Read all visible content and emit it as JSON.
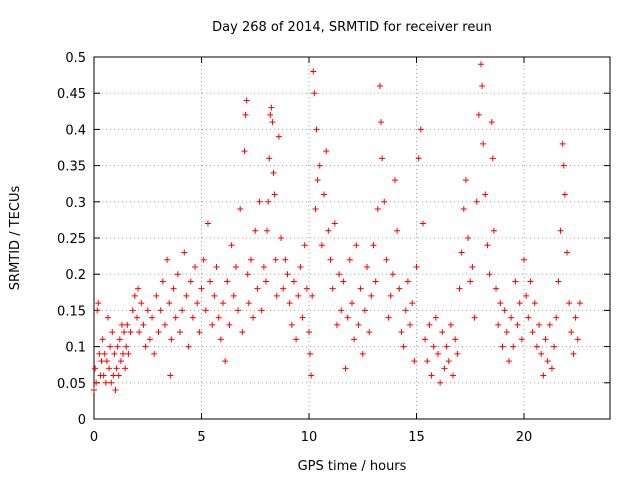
{
  "chart_data": {
    "type": "scatter",
    "title": "Day 268 of 2014, SRMTID for receiver reun",
    "xlabel": "GPS time / hours",
    "ylabel": "SRMTID / TECUs",
    "xlim": [
      0,
      24
    ],
    "ylim": [
      0,
      0.5
    ],
    "xticks": [
      0,
      5,
      10,
      15,
      20
    ],
    "xtick_labels": [
      "0",
      "5",
      "10",
      "15",
      "20"
    ],
    "yticks": [
      0,
      0.05,
      0.1,
      0.15,
      0.2,
      0.25,
      0.3,
      0.35,
      0.4,
      0.45,
      0.5
    ],
    "ytick_labels": [
      "0",
      "0.05",
      "0.1",
      "0.15",
      "0.2",
      "0.25",
      "0.3",
      "0.35",
      "0.4",
      "0.45",
      "0.5"
    ],
    "grid": true,
    "marker": "+",
    "color": "#ff0000",
    "series": [
      {
        "name": "reun",
        "points": [
          [
            0.0,
            0.04
          ],
          [
            0.05,
            0.07
          ],
          [
            0.1,
            0.05
          ],
          [
            0.15,
            0.15
          ],
          [
            0.2,
            0.16
          ],
          [
            0.25,
            0.09
          ],
          [
            0.3,
            0.06
          ],
          [
            0.35,
            0.08
          ],
          [
            0.4,
            0.11
          ],
          [
            0.45,
            0.06
          ],
          [
            0.5,
            0.09
          ],
          [
            0.55,
            0.05
          ],
          [
            0.6,
            0.08
          ],
          [
            0.65,
            0.14
          ],
          [
            0.7,
            0.07
          ],
          [
            0.75,
            0.1
          ],
          [
            0.8,
            0.05
          ],
          [
            0.85,
            0.12
          ],
          [
            0.9,
            0.06
          ],
          [
            0.95,
            0.09
          ],
          [
            1.0,
            0.04
          ],
          [
            1.05,
            0.07
          ],
          [
            1.1,
            0.1
          ],
          [
            1.15,
            0.06
          ],
          [
            1.2,
            0.11
          ],
          [
            1.25,
            0.08
          ],
          [
            1.3,
            0.13
          ],
          [
            1.35,
            0.09
          ],
          [
            1.4,
            0.12
          ],
          [
            1.45,
            0.07
          ],
          [
            1.5,
            0.1
          ],
          [
            1.55,
            0.13
          ],
          [
            1.6,
            0.09
          ],
          [
            1.7,
            0.12
          ],
          [
            1.8,
            0.15
          ],
          [
            1.9,
            0.17
          ],
          [
            2.0,
            0.14
          ],
          [
            2.05,
            0.18
          ],
          [
            2.1,
            0.12
          ],
          [
            2.2,
            0.16
          ],
          [
            2.3,
            0.13
          ],
          [
            2.4,
            0.1
          ],
          [
            2.5,
            0.15
          ],
          [
            2.6,
            0.11
          ],
          [
            2.7,
            0.14
          ],
          [
            2.8,
            0.09
          ],
          [
            2.9,
            0.17
          ],
          [
            3.0,
            0.12
          ],
          [
            3.1,
            0.15
          ],
          [
            3.2,
            0.19
          ],
          [
            3.3,
            0.13
          ],
          [
            3.4,
            0.22
          ],
          [
            3.5,
            0.16
          ],
          [
            3.55,
            0.06
          ],
          [
            3.6,
            0.11
          ],
          [
            3.7,
            0.18
          ],
          [
            3.8,
            0.14
          ],
          [
            3.9,
            0.2
          ],
          [
            4.0,
            0.12
          ],
          [
            4.1,
            0.15
          ],
          [
            4.2,
            0.23
          ],
          [
            4.3,
            0.17
          ],
          [
            4.4,
            0.1
          ],
          [
            4.5,
            0.19
          ],
          [
            4.6,
            0.14
          ],
          [
            4.7,
            0.21
          ],
          [
            4.8,
            0.16
          ],
          [
            4.9,
            0.12
          ],
          [
            5.0,
            0.18
          ],
          [
            5.1,
            0.22
          ],
          [
            5.2,
            0.15
          ],
          [
            5.3,
            0.27
          ],
          [
            5.4,
            0.19
          ],
          [
            5.5,
            0.13
          ],
          [
            5.6,
            0.17
          ],
          [
            5.7,
            0.21
          ],
          [
            5.8,
            0.14
          ],
          [
            5.9,
            0.11
          ],
          [
            6.0,
            0.16
          ],
          [
            6.1,
            0.08
          ],
          [
            6.2,
            0.19
          ],
          [
            6.3,
            0.13
          ],
          [
            6.4,
            0.24
          ],
          [
            6.5,
            0.17
          ],
          [
            6.6,
            0.21
          ],
          [
            6.7,
            0.15
          ],
          [
            6.8,
            0.29
          ],
          [
            6.9,
            0.12
          ],
          [
            7.0,
            0.37
          ],
          [
            7.05,
            0.42
          ],
          [
            7.1,
            0.44
          ],
          [
            7.15,
            0.2
          ],
          [
            7.2,
            0.16
          ],
          [
            7.3,
            0.22
          ],
          [
            7.4,
            0.14
          ],
          [
            7.5,
            0.26
          ],
          [
            7.6,
            0.18
          ],
          [
            7.7,
            0.3
          ],
          [
            7.8,
            0.15
          ],
          [
            7.9,
            0.21
          ],
          [
            8.0,
            0.19
          ],
          [
            8.05,
            0.26
          ],
          [
            8.1,
            0.3
          ],
          [
            8.15,
            0.36
          ],
          [
            8.2,
            0.42
          ],
          [
            8.25,
            0.43
          ],
          [
            8.3,
            0.41
          ],
          [
            8.35,
            0.34
          ],
          [
            8.4,
            0.31
          ],
          [
            8.45,
            0.22
          ],
          [
            8.5,
            0.17
          ],
          [
            8.6,
            0.39
          ],
          [
            8.7,
            0.25
          ],
          [
            8.8,
            0.18
          ],
          [
            8.9,
            0.22
          ],
          [
            9.0,
            0.2
          ],
          [
            9.1,
            0.16
          ],
          [
            9.2,
            0.13
          ],
          [
            9.3,
            0.19
          ],
          [
            9.4,
            0.11
          ],
          [
            9.5,
            0.17
          ],
          [
            9.6,
            0.21
          ],
          [
            9.7,
            0.14
          ],
          [
            9.8,
            0.24
          ],
          [
            9.9,
            0.18
          ],
          [
            10.0,
            0.12
          ],
          [
            10.05,
            0.09
          ],
          [
            10.1,
            0.06
          ],
          [
            10.15,
            0.17
          ],
          [
            10.2,
            0.48
          ],
          [
            10.25,
            0.45
          ],
          [
            10.3,
            0.29
          ],
          [
            10.35,
            0.4
          ],
          [
            10.4,
            0.33
          ],
          [
            10.5,
            0.35
          ],
          [
            10.6,
            0.24
          ],
          [
            10.7,
            0.31
          ],
          [
            10.8,
            0.37
          ],
          [
            10.9,
            0.26
          ],
          [
            11.0,
            0.22
          ],
          [
            11.1,
            0.18
          ],
          [
            11.2,
            0.27
          ],
          [
            11.3,
            0.13
          ],
          [
            11.4,
            0.2
          ],
          [
            11.5,
            0.15
          ],
          [
            11.6,
            0.19
          ],
          [
            11.7,
            0.07
          ],
          [
            11.8,
            0.14
          ],
          [
            11.9,
            0.22
          ],
          [
            12.0,
            0.16
          ],
          [
            12.1,
            0.11
          ],
          [
            12.2,
            0.24
          ],
          [
            12.3,
            0.13
          ],
          [
            12.4,
            0.18
          ],
          [
            12.5,
            0.09
          ],
          [
            12.6,
            0.15
          ],
          [
            12.7,
            0.21
          ],
          [
            12.8,
            0.12
          ],
          [
            12.9,
            0.17
          ],
          [
            13.0,
            0.24
          ],
          [
            13.1,
            0.19
          ],
          [
            13.2,
            0.29
          ],
          [
            13.3,
            0.46
          ],
          [
            13.35,
            0.41
          ],
          [
            13.4,
            0.36
          ],
          [
            13.5,
            0.3
          ],
          [
            13.6,
            0.22
          ],
          [
            13.7,
            0.14
          ],
          [
            13.8,
            0.17
          ],
          [
            13.9,
            0.2
          ],
          [
            14.0,
            0.33
          ],
          [
            14.1,
            0.26
          ],
          [
            14.2,
            0.18
          ],
          [
            14.3,
            0.12
          ],
          [
            14.4,
            0.1
          ],
          [
            14.5,
            0.15
          ],
          [
            14.6,
            0.19
          ],
          [
            14.7,
            0.13
          ],
          [
            14.8,
            0.16
          ],
          [
            14.9,
            0.08
          ],
          [
            15.0,
            0.21
          ],
          [
            15.1,
            0.36
          ],
          [
            15.2,
            0.4
          ],
          [
            15.3,
            0.27
          ],
          [
            15.4,
            0.11
          ],
          [
            15.5,
            0.08
          ],
          [
            15.6,
            0.13
          ],
          [
            15.7,
            0.06
          ],
          [
            15.8,
            0.1
          ],
          [
            15.9,
            0.14
          ],
          [
            16.0,
            0.09
          ],
          [
            16.1,
            0.05
          ],
          [
            16.2,
            0.12
          ],
          [
            16.3,
            0.07
          ],
          [
            16.4,
            0.1
          ],
          [
            16.5,
            0.08
          ],
          [
            16.6,
            0.13
          ],
          [
            16.7,
            0.06
          ],
          [
            16.8,
            0.11
          ],
          [
            16.9,
            0.09
          ],
          [
            17.0,
            0.18
          ],
          [
            17.1,
            0.23
          ],
          [
            17.2,
            0.29
          ],
          [
            17.3,
            0.33
          ],
          [
            17.4,
            0.25
          ],
          [
            17.5,
            0.19
          ],
          [
            17.6,
            0.21
          ],
          [
            17.7,
            0.14
          ],
          [
            17.8,
            0.3
          ],
          [
            17.9,
            0.42
          ],
          [
            18.0,
            0.49
          ],
          [
            18.05,
            0.46
          ],
          [
            18.1,
            0.38
          ],
          [
            18.2,
            0.31
          ],
          [
            18.3,
            0.24
          ],
          [
            18.4,
            0.2
          ],
          [
            18.5,
            0.41
          ],
          [
            18.55,
            0.36
          ],
          [
            18.6,
            0.26
          ],
          [
            18.7,
            0.18
          ],
          [
            18.8,
            0.13
          ],
          [
            18.9,
            0.16
          ],
          [
            19.0,
            0.1
          ],
          [
            19.1,
            0.15
          ],
          [
            19.2,
            0.12
          ],
          [
            19.3,
            0.08
          ],
          [
            19.4,
            0.14
          ],
          [
            19.5,
            0.1
          ],
          [
            19.6,
            0.19
          ],
          [
            19.7,
            0.13
          ],
          [
            19.8,
            0.16
          ],
          [
            19.9,
            0.11
          ],
          [
            20.0,
            0.22
          ],
          [
            20.1,
            0.17
          ],
          [
            20.2,
            0.14
          ],
          [
            20.3,
            0.19
          ],
          [
            20.4,
            0.12
          ],
          [
            20.5,
            0.16
          ],
          [
            20.6,
            0.1
          ],
          [
            20.7,
            0.13
          ],
          [
            20.8,
            0.09
          ],
          [
            20.9,
            0.06
          ],
          [
            21.0,
            0.11
          ],
          [
            21.1,
            0.08
          ],
          [
            21.2,
            0.13
          ],
          [
            21.3,
            0.07
          ],
          [
            21.4,
            0.1
          ],
          [
            21.5,
            0.14
          ],
          [
            21.6,
            0.19
          ],
          [
            21.7,
            0.26
          ],
          [
            21.8,
            0.38
          ],
          [
            21.85,
            0.35
          ],
          [
            21.9,
            0.31
          ],
          [
            22.0,
            0.23
          ],
          [
            22.1,
            0.16
          ],
          [
            22.2,
            0.12
          ],
          [
            22.3,
            0.09
          ],
          [
            22.4,
            0.14
          ],
          [
            22.5,
            0.11
          ],
          [
            22.6,
            0.16
          ]
        ]
      }
    ]
  }
}
